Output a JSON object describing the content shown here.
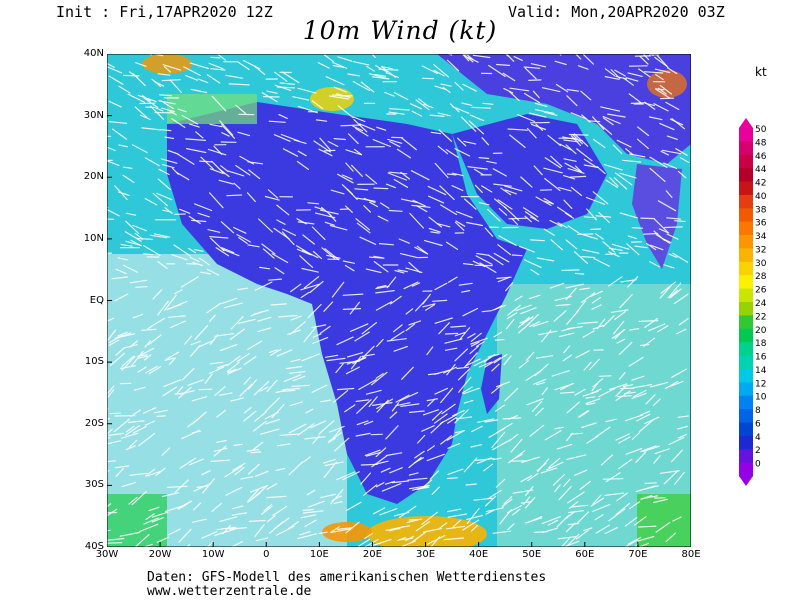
{
  "header": {
    "init_label": "Init : Fri,17APR2020 12Z",
    "valid_label": "Valid: Mon,20APR2020 03Z",
    "title": "10m Wind (kt)"
  },
  "unit": "kt",
  "map": {
    "lat_labels": [
      "40N",
      "30N",
      "20N",
      "10N",
      "EQ",
      "10S",
      "20S",
      "30S",
      "40S"
    ],
    "lon_labels": [
      "30W",
      "20W",
      "10W",
      "0",
      "10E",
      "20E",
      "30E",
      "40E",
      "50E",
      "60E",
      "70E",
      "80E"
    ],
    "region": "Africa, Arabia and surrounding oceans",
    "field": "10m wind speed shaded with wind streaks"
  },
  "colorbar": {
    "labels": [
      "50",
      "48",
      "46",
      "44",
      "42",
      "40",
      "38",
      "36",
      "34",
      "32",
      "30",
      "28",
      "26",
      "24",
      "22",
      "20",
      "18",
      "16",
      "14",
      "12",
      "10",
      "8",
      "6",
      "4",
      "2",
      "0"
    ],
    "colors": [
      "#e8009c",
      "#d4006e",
      "#c80046",
      "#b40028",
      "#c81414",
      "#e63c14",
      "#f05a00",
      "#fa7800",
      "#fa9600",
      "#fab400",
      "#fad200",
      "#faf000",
      "#c8e600",
      "#96d200",
      "#32c832",
      "#00c850",
      "#00d28c",
      "#00d2b4",
      "#00c8e6",
      "#00aaf0",
      "#0082f0",
      "#0064e6",
      "#0046d2",
      "#1e28d2",
      "#6414dc",
      "#9600e6"
    ]
  },
  "footer": {
    "line1": "Daten: GFS-Modell des amerikanischen Wetterdienstes",
    "line2": "www.wetterzentrale.de"
  }
}
